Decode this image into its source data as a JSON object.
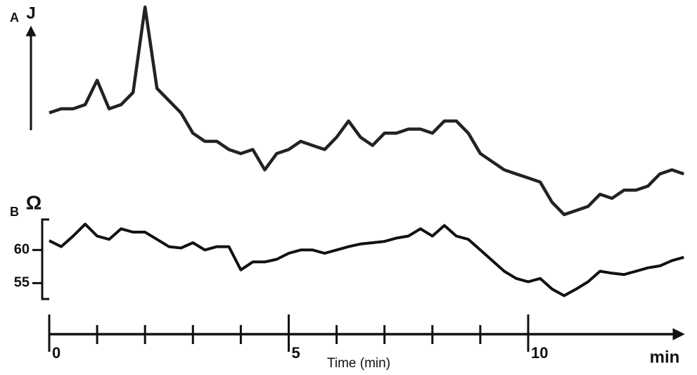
{
  "chart_data": [
    {
      "type": "line",
      "label": "A",
      "ylabel": "J",
      "color": "#222222",
      "x": [
        0,
        0.25,
        0.5,
        0.75,
        1,
        1.25,
        1.5,
        1.75,
        2,
        2.25,
        2.5,
        2.75,
        3,
        3.25,
        3.5,
        3.75,
        4,
        4.25,
        4.5,
        4.75,
        5,
        5.25,
        5.5,
        5.75,
        6,
        6.25,
        6.5,
        6.75,
        7,
        7.25,
        7.5,
        7.75,
        8,
        8.25,
        8.5,
        8.75,
        9,
        9.25,
        9.5,
        9.75,
        10,
        10.25,
        10.5,
        10.75,
        11,
        11.25,
        11.5,
        11.75,
        12,
        12.25,
        12.5,
        12.75,
        13,
        13.25
      ],
      "values": [
        130,
        135,
        135,
        140,
        170,
        135,
        140,
        155,
        260,
        160,
        145,
        130,
        105,
        95,
        95,
        85,
        80,
        85,
        60,
        80,
        85,
        95,
        90,
        85,
        100,
        120,
        100,
        90,
        105,
        105,
        110,
        110,
        105,
        120,
        120,
        105,
        80,
        70,
        60,
        55,
        50,
        45,
        20,
        5,
        10,
        15,
        30,
        25,
        35,
        35,
        40,
        55,
        60,
        55
      ]
    },
    {
      "type": "line",
      "label": "B",
      "ylabel": "Ω",
      "color": "#111111",
      "x": [
        0,
        0.25,
        0.5,
        0.75,
        1,
        1.25,
        1.5,
        1.75,
        2,
        2.25,
        2.5,
        2.75,
        3,
        3.25,
        3.5,
        3.75,
        4,
        4.25,
        4.5,
        4.75,
        5,
        5.25,
        5.5,
        5.75,
        6,
        6.25,
        6.5,
        6.75,
        7,
        7.25,
        7.5,
        7.75,
        8,
        8.25,
        8.5,
        8.75,
        9,
        9.25,
        9.5,
        9.75,
        10,
        10.25,
        10.5,
        10.75,
        11,
        11.25,
        11.5,
        11.75,
        12,
        12.25,
        12.5,
        12.75,
        13,
        13.25
      ],
      "values": [
        61.4,
        60.5,
        62.1,
        63.9,
        62.1,
        61.6,
        63.2,
        62.7,
        62.7,
        61.6,
        60.5,
        60.3,
        61.1,
        60,
        60.5,
        60.5,
        57.0,
        58.2,
        58.2,
        58.6,
        59.5,
        60,
        60,
        59.5,
        60,
        60.5,
        60.9,
        61.1,
        61.3,
        61.8,
        62.1,
        63.2,
        62.1,
        63.7,
        62.1,
        61.6,
        60,
        58.4,
        56.8,
        55.7,
        55.2,
        55.7,
        54.1,
        53.1,
        54.1,
        55.2,
        56.8,
        56.5,
        56.3,
        56.8,
        57.3,
        57.6,
        58.4,
        58.9
      ],
      "ylim": [
        52.6,
        64.6
      ],
      "yticks": [
        55,
        60
      ],
      "xlim": [
        0,
        13.3
      ],
      "xticks": [
        0,
        5,
        10
      ],
      "xminor_ticks": [
        1,
        2,
        3,
        4,
        6,
        7,
        8,
        9
      ],
      "x_unit": "min",
      "xlabel": "Time (min)"
    }
  ]
}
